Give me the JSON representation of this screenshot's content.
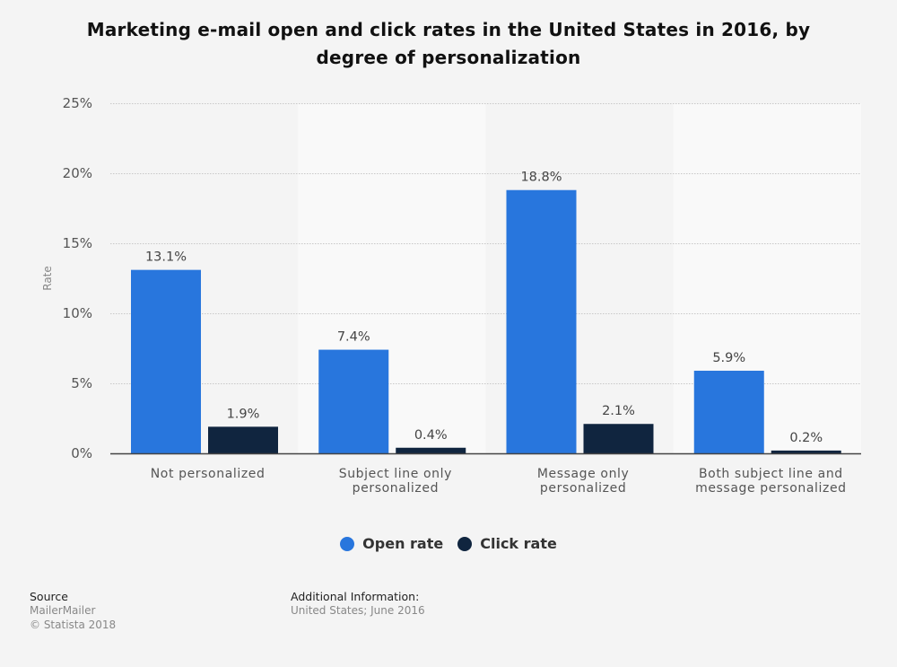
{
  "chart_data": {
    "type": "bar",
    "title": "Marketing e-mail open and click rates in the United States in 2016, by degree of personalization",
    "title_lines": [
      "Marketing e-mail open and click rates in the United States in 2016, by",
      "degree of personalization"
    ],
    "xlabel": "",
    "ylabel": "Rate",
    "ylim": [
      0,
      25
    ],
    "yticks": [
      0,
      5,
      10,
      15,
      20,
      25
    ],
    "ytick_labels": [
      "0%",
      "5%",
      "10%",
      "15%",
      "20%",
      "25%"
    ],
    "grid": true,
    "legend_position": "bottom-center",
    "categories": [
      "Not personalized",
      "Subject line only personalized",
      "Message only personalized",
      "Both subject line and message personalized"
    ],
    "category_lines": [
      [
        "Not personalized"
      ],
      [
        "Subject line only",
        "personalized"
      ],
      [
        "Message only",
        "personalized"
      ],
      [
        "Both subject line and",
        "message personalized"
      ]
    ],
    "series": [
      {
        "name": "Open rate",
        "color": "#2876dd",
        "values": [
          13.1,
          7.4,
          18.8,
          5.9
        ],
        "labels": [
          "13.1%",
          "7.4%",
          "18.8%",
          "5.9%"
        ]
      },
      {
        "name": "Click rate",
        "color": "#10253f",
        "values": [
          1.9,
          0.4,
          2.1,
          0.2
        ],
        "labels": [
          "1.9%",
          "0.4%",
          "2.1%",
          "0.2%"
        ]
      }
    ]
  },
  "footer": {
    "source_heading": "Source",
    "source_name": "MailerMailer",
    "copyright": "© Statista 2018",
    "additional_heading": "Additional Information:",
    "additional_text": "United States; June 2016"
  }
}
